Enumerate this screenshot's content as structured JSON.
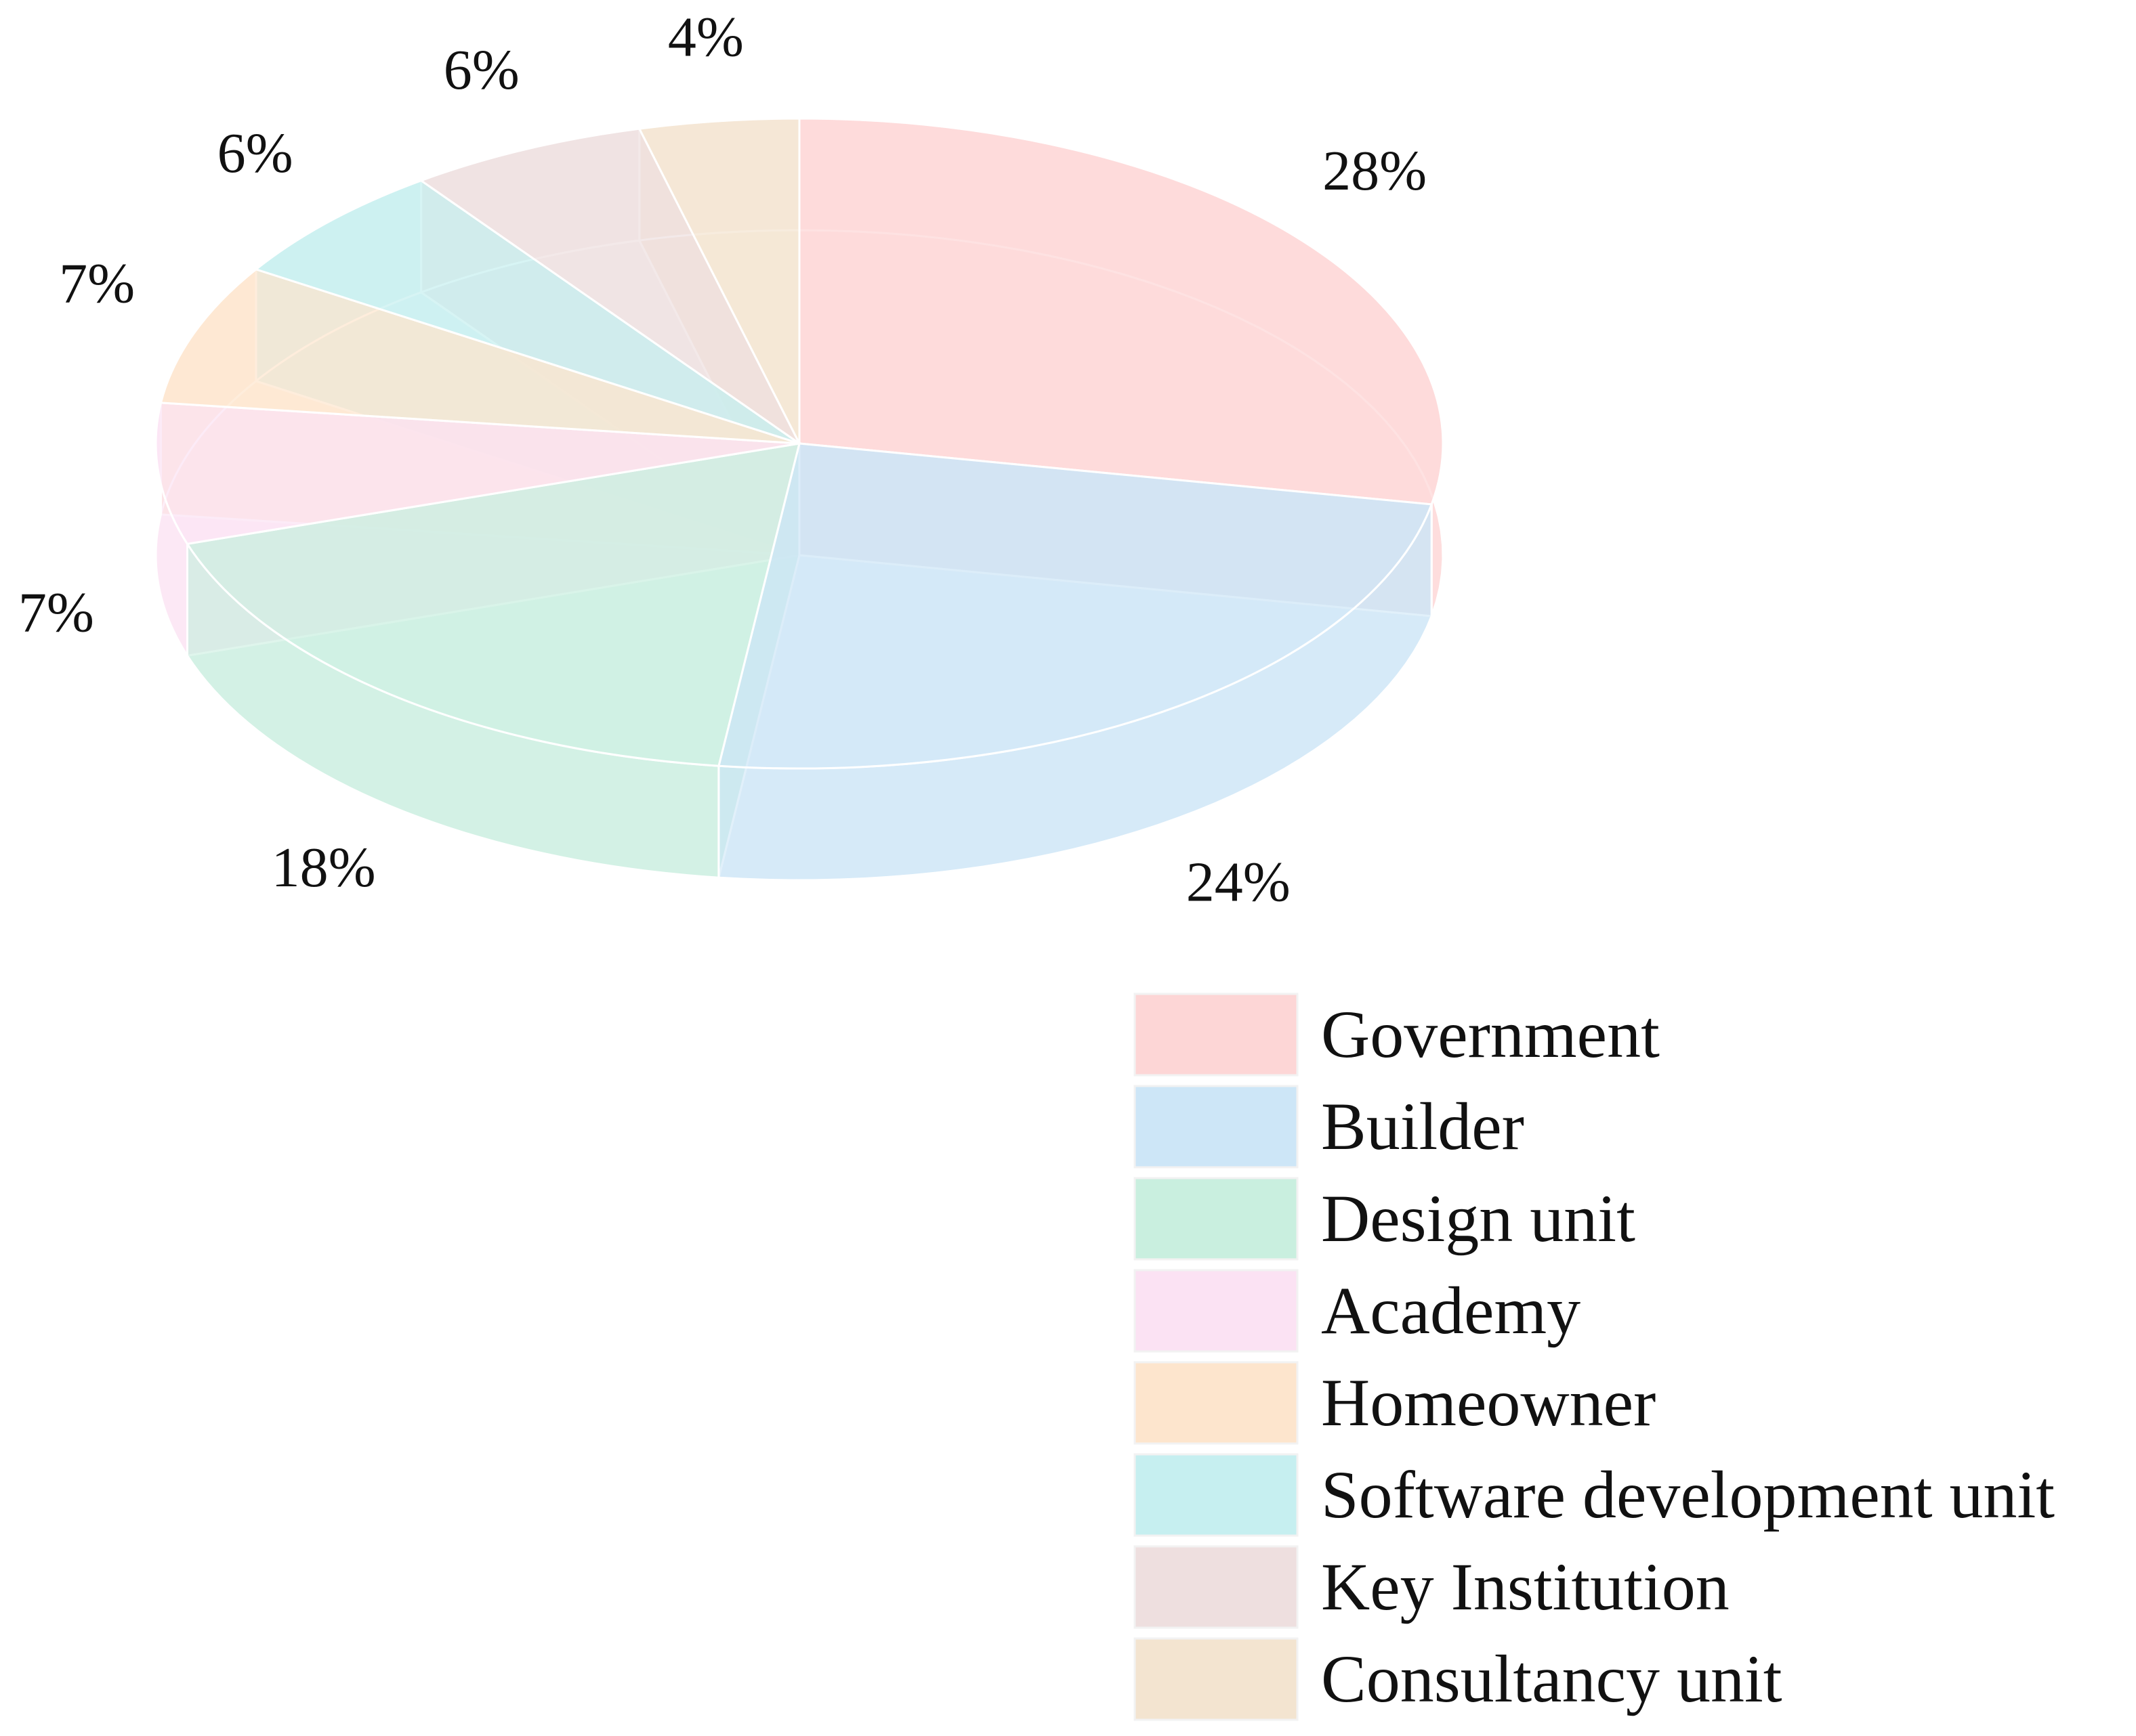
{
  "chart_data": {
    "type": "pie",
    "style": "3d-exploded",
    "title": "",
    "categories": [
      "Government",
      "Builder",
      "Design unit",
      "Academy",
      "Homeowner",
      "Software development unit",
      "Key Institution",
      "Consultancy unit"
    ],
    "values": [
      28,
      24,
      18,
      7,
      7,
      6,
      6,
      4
    ],
    "labels": [
      "28%",
      "24%",
      "18%",
      "7%",
      "7%",
      "6%",
      "6%",
      "4%"
    ],
    "colors": [
      "#fdd6d6",
      "#cde6f7",
      "#c9efdf",
      "#fbe2f3",
      "#fde5cd",
      "#c6eff0",
      "#eedfdf",
      "#f3e4d0"
    ],
    "legend_position": "bottom-right"
  }
}
